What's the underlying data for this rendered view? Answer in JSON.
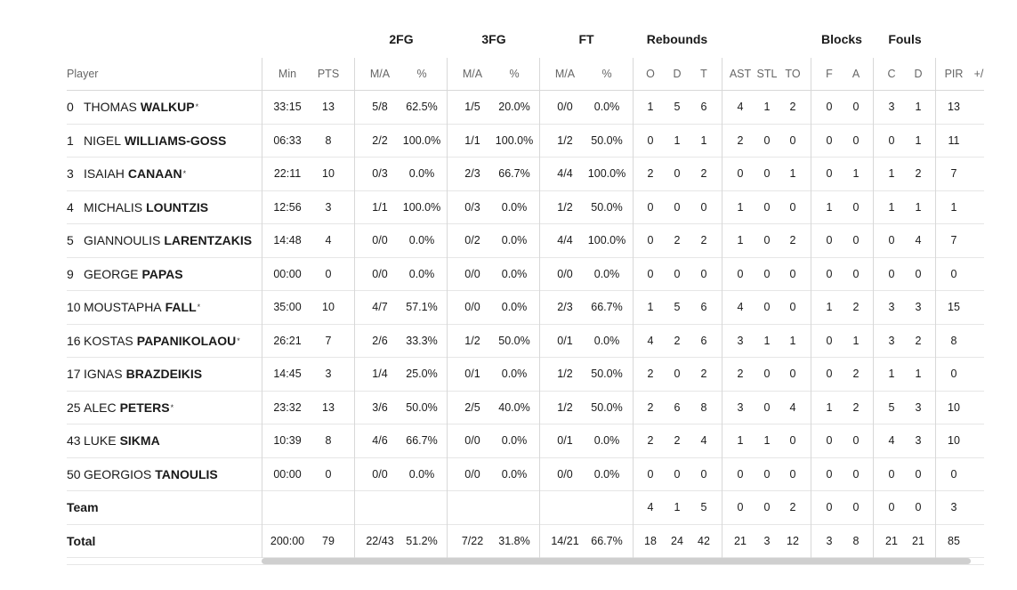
{
  "groups": [
    "2FG",
    "3FG",
    "FT",
    "Rebounds",
    "Blocks",
    "Fouls"
  ],
  "player_header": "Player",
  "columns": [
    "Min",
    "PTS",
    "M/A",
    "%",
    "M/A",
    "%",
    "M/A",
    "%",
    "O",
    "D",
    "T",
    "AST",
    "STL",
    "TO",
    "F",
    "A",
    "C",
    "D",
    "PIR",
    "+/"
  ],
  "players": [
    {
      "num": "0",
      "first": "THOMAS",
      "last": "WALKUP",
      "star": "*",
      "stats": [
        "33:15",
        "13",
        "5/8",
        "62.5%",
        "1/5",
        "20.0%",
        "0/0",
        "0.0%",
        "1",
        "5",
        "6",
        "4",
        "1",
        "2",
        "0",
        "0",
        "3",
        "1",
        "13",
        ""
      ]
    },
    {
      "num": "1",
      "first": "NIGEL",
      "last": "WILLIAMS-GOSS",
      "star": "",
      "stats": [
        "06:33",
        "8",
        "2/2",
        "100.0%",
        "1/1",
        "100.0%",
        "1/2",
        "50.0%",
        "0",
        "1",
        "1",
        "2",
        "0",
        "0",
        "0",
        "0",
        "0",
        "1",
        "11",
        ""
      ]
    },
    {
      "num": "3",
      "first": "ISAIAH",
      "last": "CANAAN",
      "star": "*",
      "stats": [
        "22:11",
        "10",
        "0/3",
        "0.0%",
        "2/3",
        "66.7%",
        "4/4",
        "100.0%",
        "2",
        "0",
        "2",
        "0",
        "0",
        "1",
        "0",
        "1",
        "1",
        "2",
        "7",
        ""
      ]
    },
    {
      "num": "4",
      "first": "MICHALIS",
      "last": "LOUNTZIS",
      "star": "",
      "stats": [
        "12:56",
        "3",
        "1/1",
        "100.0%",
        "0/3",
        "0.0%",
        "1/2",
        "50.0%",
        "0",
        "0",
        "0",
        "1",
        "0",
        "0",
        "1",
        "0",
        "1",
        "1",
        "1",
        ""
      ]
    },
    {
      "num": "5",
      "first": "GIANNOULIS",
      "last": "LARENTZAKIS",
      "star": "",
      "stats": [
        "14:48",
        "4",
        "0/0",
        "0.0%",
        "0/2",
        "0.0%",
        "4/4",
        "100.0%",
        "0",
        "2",
        "2",
        "1",
        "0",
        "2",
        "0",
        "0",
        "0",
        "4",
        "7",
        ""
      ]
    },
    {
      "num": "9",
      "first": "GEORGE",
      "last": "PAPAS",
      "star": "",
      "stats": [
        "00:00",
        "0",
        "0/0",
        "0.0%",
        "0/0",
        "0.0%",
        "0/0",
        "0.0%",
        "0",
        "0",
        "0",
        "0",
        "0",
        "0",
        "0",
        "0",
        "0",
        "0",
        "0",
        ""
      ]
    },
    {
      "num": "10",
      "first": "MOUSTAPHA",
      "last": "FALL",
      "star": "*",
      "stats": [
        "35:00",
        "10",
        "4/7",
        "57.1%",
        "0/0",
        "0.0%",
        "2/3",
        "66.7%",
        "1",
        "5",
        "6",
        "4",
        "0",
        "0",
        "1",
        "2",
        "3",
        "3",
        "15",
        ""
      ]
    },
    {
      "num": "16",
      "first": "KOSTAS",
      "last": "PAPANIKOLAOU",
      "star": "*",
      "stats": [
        "26:21",
        "7",
        "2/6",
        "33.3%",
        "1/2",
        "50.0%",
        "0/1",
        "0.0%",
        "4",
        "2",
        "6",
        "3",
        "1",
        "1",
        "0",
        "1",
        "3",
        "2",
        "8",
        ""
      ]
    },
    {
      "num": "17",
      "first": "IGNAS",
      "last": "BRAZDEIKIS",
      "star": "",
      "stats": [
        "14:45",
        "3",
        "1/4",
        "25.0%",
        "0/1",
        "0.0%",
        "1/2",
        "50.0%",
        "2",
        "0",
        "2",
        "2",
        "0",
        "0",
        "0",
        "2",
        "1",
        "1",
        "0",
        ""
      ]
    },
    {
      "num": "25",
      "first": "ALEC",
      "last": "PETERS",
      "star": "*",
      "stats": [
        "23:32",
        "13",
        "3/6",
        "50.0%",
        "2/5",
        "40.0%",
        "1/2",
        "50.0%",
        "2",
        "6",
        "8",
        "3",
        "0",
        "4",
        "1",
        "2",
        "5",
        "3",
        "10",
        ""
      ]
    },
    {
      "num": "43",
      "first": "LUKE",
      "last": "SIKMA",
      "star": "",
      "stats": [
        "10:39",
        "8",
        "4/6",
        "66.7%",
        "0/0",
        "0.0%",
        "0/1",
        "0.0%",
        "2",
        "2",
        "4",
        "1",
        "1",
        "0",
        "0",
        "0",
        "4",
        "3",
        "10",
        ""
      ]
    },
    {
      "num": "50",
      "first": "GEORGIOS",
      "last": "TANOULIS",
      "star": "",
      "stats": [
        "00:00",
        "0",
        "0/0",
        "0.0%",
        "0/0",
        "0.0%",
        "0/0",
        "0.0%",
        "0",
        "0",
        "0",
        "0",
        "0",
        "0",
        "0",
        "0",
        "0",
        "0",
        "0",
        ""
      ]
    }
  ],
  "team": {
    "label": "Team",
    "stats": [
      "",
      "",
      "",
      "",
      "",
      "",
      "",
      "",
      "4",
      "1",
      "5",
      "0",
      "0",
      "2",
      "0",
      "0",
      "0",
      "0",
      "3",
      ""
    ]
  },
  "total": {
    "label": "Total",
    "stats": [
      "200:00",
      "79",
      "22/43",
      "51.2%",
      "7/22",
      "31.8%",
      "14/21",
      "66.7%",
      "18",
      "24",
      "42",
      "21",
      "3",
      "12",
      "3",
      "8",
      "21",
      "21",
      "85",
      ""
    ]
  }
}
